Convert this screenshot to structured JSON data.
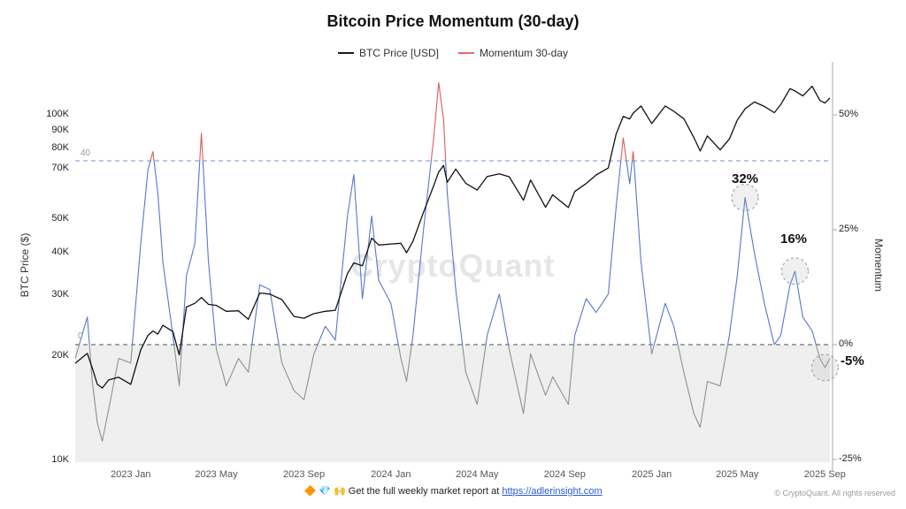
{
  "page": {
    "title": "Bitcoin Price Momentum (30-day)"
  },
  "legend": {
    "items": [
      {
        "label": "BTC Price [USD]",
        "color": "#1a1a1a"
      },
      {
        "label": "Momentum 30-day",
        "color": "#e06c6c"
      }
    ]
  },
  "watermark": {
    "text": "CryptoQuant"
  },
  "footer": {
    "icons": [
      {
        "name": "orange-diamond-icon",
        "glyph": "🔶",
        "color": "#f5a623"
      },
      {
        "name": "gem-icon",
        "glyph": "💎",
        "color": "#4aa3e8"
      },
      {
        "name": "raised-hands-icon",
        "glyph": "🙌",
        "color": "#e8b04b"
      }
    ],
    "text": "Get the full weekly market report at",
    "link": "https://adlerinsight.com",
    "copyright": "© CryptoQuant. All rights reserved"
  },
  "chart_data": {
    "type": "line",
    "title": "Bitcoin Price Momentum (30-day)",
    "x_axis": {
      "ticks": [
        {
          "date": "2023-01-01",
          "label": "2023 Jan"
        },
        {
          "date": "2023-05-01",
          "label": "2023 May"
        },
        {
          "date": "2023-09-01",
          "label": "2023 Sep"
        },
        {
          "date": "2024-01-01",
          "label": "2024 Jan"
        },
        {
          "date": "2024-05-01",
          "label": "2024 May"
        },
        {
          "date": "2024-09-01",
          "label": "2024 Sep"
        },
        {
          "date": "2025-01-01",
          "label": "2025 Jan"
        },
        {
          "date": "2025-05-01",
          "label": "2025 May"
        },
        {
          "date": "2025-09-01",
          "label": "2025 Sep"
        }
      ]
    },
    "left_axis": {
      "title": "BTC Price ($)",
      "scale": "log",
      "unit": "USD",
      "ticks": [
        {
          "value": 10000,
          "label": "10K"
        },
        {
          "value": 20000,
          "label": "20K"
        },
        {
          "value": 30000,
          "label": "30K"
        },
        {
          "value": 40000,
          "label": "40K"
        },
        {
          "value": 50000,
          "label": "50K"
        },
        {
          "value": 70000,
          "label": "70K"
        },
        {
          "value": 80000,
          "label": "80K"
        },
        {
          "value": 90000,
          "label": "90K"
        },
        {
          "value": 100000,
          "label": "100K"
        }
      ]
    },
    "right_axis": {
      "title": "Momentum",
      "unit": "%",
      "range": [
        -25,
        50
      ],
      "ticks": [
        {
          "value": -25,
          "label": "-25%"
        },
        {
          "value": 0,
          "label": "0%"
        },
        {
          "value": 25,
          "label": "25%"
        },
        {
          "value": 50,
          "label": "50%"
        }
      ]
    },
    "thresholds": [
      {
        "label": "40",
        "value": 40,
        "color": "#8aa7e2"
      },
      {
        "label": "0",
        "value": 0,
        "color": "#707070"
      }
    ],
    "shaded_region": {
      "below_value": 0,
      "color": "#efefef"
    },
    "annotations": [
      {
        "label": "32%",
        "date": "2025-05-12",
        "value": 32
      },
      {
        "label": "16%",
        "date": "2025-07-21",
        "value": 16
      },
      {
        "label": "-5%",
        "date": "2025-09-01",
        "value": -5
      }
    ],
    "series": [
      {
        "name": "BTC Price [USD]",
        "axis": "left",
        "color": "#111111",
        "points": [
          [
            "2022-10-15",
            19100
          ],
          [
            "2022-11-01",
            20400
          ],
          [
            "2022-11-08",
            18500
          ],
          [
            "2022-11-15",
            16600
          ],
          [
            "2022-11-22",
            16200
          ],
          [
            "2022-12-01",
            17100
          ],
          [
            "2022-12-15",
            17400
          ],
          [
            "2023-01-01",
            16600
          ],
          [
            "2023-01-15",
            20900
          ],
          [
            "2023-01-25",
            23000
          ],
          [
            "2023-02-01",
            23700
          ],
          [
            "2023-02-08",
            23200
          ],
          [
            "2023-02-15",
            24600
          ],
          [
            "2023-03-01",
            23600
          ],
          [
            "2023-03-10",
            20200
          ],
          [
            "2023-03-20",
            27800
          ],
          [
            "2023-04-01",
            28500
          ],
          [
            "2023-04-10",
            29600
          ],
          [
            "2023-04-20",
            28300
          ],
          [
            "2023-05-01",
            28100
          ],
          [
            "2023-05-15",
            27000
          ],
          [
            "2023-06-01",
            27100
          ],
          [
            "2023-06-15",
            25600
          ],
          [
            "2023-07-01",
            30500
          ],
          [
            "2023-07-15",
            30300
          ],
          [
            "2023-08-01",
            29200
          ],
          [
            "2023-08-18",
            26100
          ],
          [
            "2023-09-01",
            25800
          ],
          [
            "2023-09-15",
            26600
          ],
          [
            "2023-10-01",
            27000
          ],
          [
            "2023-10-15",
            27200
          ],
          [
            "2023-11-01",
            34700
          ],
          [
            "2023-11-10",
            37300
          ],
          [
            "2023-11-22",
            36600
          ],
          [
            "2023-12-05",
            44000
          ],
          [
            "2023-12-15",
            42000
          ],
          [
            "2024-01-01",
            42300
          ],
          [
            "2024-01-15",
            42500
          ],
          [
            "2024-01-23",
            39900
          ],
          [
            "2024-02-01",
            43100
          ],
          [
            "2024-02-15",
            51800
          ],
          [
            "2024-03-01",
            62400
          ],
          [
            "2024-03-08",
            68300
          ],
          [
            "2024-03-15",
            71400
          ],
          [
            "2024-03-20",
            63800
          ],
          [
            "2024-04-01",
            69700
          ],
          [
            "2024-04-15",
            63400
          ],
          [
            "2024-05-01",
            60600
          ],
          [
            "2024-05-15",
            66300
          ],
          [
            "2024-06-01",
            67500
          ],
          [
            "2024-06-15",
            66200
          ],
          [
            "2024-07-05",
            56600
          ],
          [
            "2024-07-15",
            64800
          ],
          [
            "2024-08-05",
            54000
          ],
          [
            "2024-08-15",
            58700
          ],
          [
            "2024-09-06",
            53900
          ],
          [
            "2024-09-15",
            60000
          ],
          [
            "2024-10-01",
            63300
          ],
          [
            "2024-10-15",
            67000
          ],
          [
            "2024-11-01",
            70200
          ],
          [
            "2024-11-12",
            88000
          ],
          [
            "2024-11-22",
            99000
          ],
          [
            "2024-12-01",
            97300
          ],
          [
            "2024-12-06",
            101200
          ],
          [
            "2024-12-17",
            106100
          ],
          [
            "2025-01-01",
            94400
          ],
          [
            "2025-01-20",
            106100
          ],
          [
            "2025-02-01",
            102400
          ],
          [
            "2025-02-15",
            97500
          ],
          [
            "2025-03-01",
            86000
          ],
          [
            "2025-03-10",
            78600
          ],
          [
            "2025-03-20",
            86900
          ],
          [
            "2025-04-07",
            79200
          ],
          [
            "2025-04-20",
            85200
          ],
          [
            "2025-05-01",
            96500
          ],
          [
            "2025-05-12",
            104100
          ],
          [
            "2025-05-25",
            109000
          ],
          [
            "2025-06-08",
            105800
          ],
          [
            "2025-06-22",
            101500
          ],
          [
            "2025-07-01",
            107100
          ],
          [
            "2025-07-14",
            119100
          ],
          [
            "2025-07-21",
            117300
          ],
          [
            "2025-08-01",
            113400
          ],
          [
            "2025-08-14",
            121000
          ],
          [
            "2025-08-25",
            110100
          ],
          [
            "2025-09-01",
            108200
          ],
          [
            "2025-09-08",
            112000
          ]
        ]
      },
      {
        "name": "Momentum 30-day",
        "axis": "right",
        "color_positive": "#5677cf",
        "color_negative": "#909090",
        "color_above_40": "#e05a5a",
        "points": [
          [
            "2022-10-15",
            -3
          ],
          [
            "2022-11-01",
            6
          ],
          [
            "2022-11-08",
            -8
          ],
          [
            "2022-11-15",
            -17
          ],
          [
            "2022-11-22",
            -21
          ],
          [
            "2022-12-01",
            -14
          ],
          [
            "2022-12-15",
            -3
          ],
          [
            "2023-01-01",
            -4
          ],
          [
            "2023-01-15",
            22
          ],
          [
            "2023-01-25",
            38
          ],
          [
            "2023-02-01",
            42
          ],
          [
            "2023-02-08",
            33
          ],
          [
            "2023-02-15",
            18
          ],
          [
            "2023-03-01",
            2
          ],
          [
            "2023-03-10",
            -9
          ],
          [
            "2023-03-20",
            15
          ],
          [
            "2023-04-01",
            22
          ],
          [
            "2023-04-10",
            46
          ],
          [
            "2023-04-20",
            18
          ],
          [
            "2023-05-01",
            -1
          ],
          [
            "2023-05-15",
            -9
          ],
          [
            "2023-06-01",
            -3
          ],
          [
            "2023-06-15",
            -6
          ],
          [
            "2023-07-01",
            13
          ],
          [
            "2023-07-15",
            12
          ],
          [
            "2023-08-01",
            -4
          ],
          [
            "2023-08-18",
            -10
          ],
          [
            "2023-09-01",
            -12
          ],
          [
            "2023-09-15",
            -2
          ],
          [
            "2023-10-01",
            4
          ],
          [
            "2023-10-15",
            1
          ],
          [
            "2023-11-01",
            28
          ],
          [
            "2023-11-10",
            37
          ],
          [
            "2023-11-22",
            10
          ],
          [
            "2023-12-05",
            28
          ],
          [
            "2023-12-15",
            14
          ],
          [
            "2024-01-01",
            9
          ],
          [
            "2024-01-15",
            -3
          ],
          [
            "2024-01-23",
            -8
          ],
          [
            "2024-02-01",
            2
          ],
          [
            "2024-02-15",
            24
          ],
          [
            "2024-03-01",
            45
          ],
          [
            "2024-03-08",
            57
          ],
          [
            "2024-03-15",
            49
          ],
          [
            "2024-03-20",
            33
          ],
          [
            "2024-04-01",
            12
          ],
          [
            "2024-04-15",
            -6
          ],
          [
            "2024-05-01",
            -13
          ],
          [
            "2024-05-15",
            2
          ],
          [
            "2024-06-01",
            11
          ],
          [
            "2024-06-15",
            -1
          ],
          [
            "2024-07-05",
            -15
          ],
          [
            "2024-07-15",
            -2
          ],
          [
            "2024-08-05",
            -11
          ],
          [
            "2024-08-15",
            -7
          ],
          [
            "2024-09-06",
            -13
          ],
          [
            "2024-09-15",
            2
          ],
          [
            "2024-10-01",
            10
          ],
          [
            "2024-10-15",
            7
          ],
          [
            "2024-11-01",
            11
          ],
          [
            "2024-11-12",
            30
          ],
          [
            "2024-11-22",
            45
          ],
          [
            "2024-12-01",
            35
          ],
          [
            "2024-12-06",
            42
          ],
          [
            "2024-12-17",
            18
          ],
          [
            "2025-01-01",
            -2
          ],
          [
            "2025-01-20",
            9
          ],
          [
            "2025-02-01",
            4
          ],
          [
            "2025-02-15",
            -6
          ],
          [
            "2025-03-01",
            -15
          ],
          [
            "2025-03-10",
            -18
          ],
          [
            "2025-03-20",
            -8
          ],
          [
            "2025-04-07",
            -9
          ],
          [
            "2025-04-20",
            2
          ],
          [
            "2025-05-01",
            15
          ],
          [
            "2025-05-12",
            32
          ],
          [
            "2025-05-25",
            20
          ],
          [
            "2025-06-08",
            9
          ],
          [
            "2025-06-22",
            0
          ],
          [
            "2025-07-01",
            2
          ],
          [
            "2025-07-14",
            13
          ],
          [
            "2025-07-21",
            16
          ],
          [
            "2025-08-01",
            6
          ],
          [
            "2025-08-14",
            3
          ],
          [
            "2025-08-25",
            -3
          ],
          [
            "2025-09-01",
            -5
          ],
          [
            "2025-09-08",
            -3
          ]
        ]
      }
    ]
  }
}
